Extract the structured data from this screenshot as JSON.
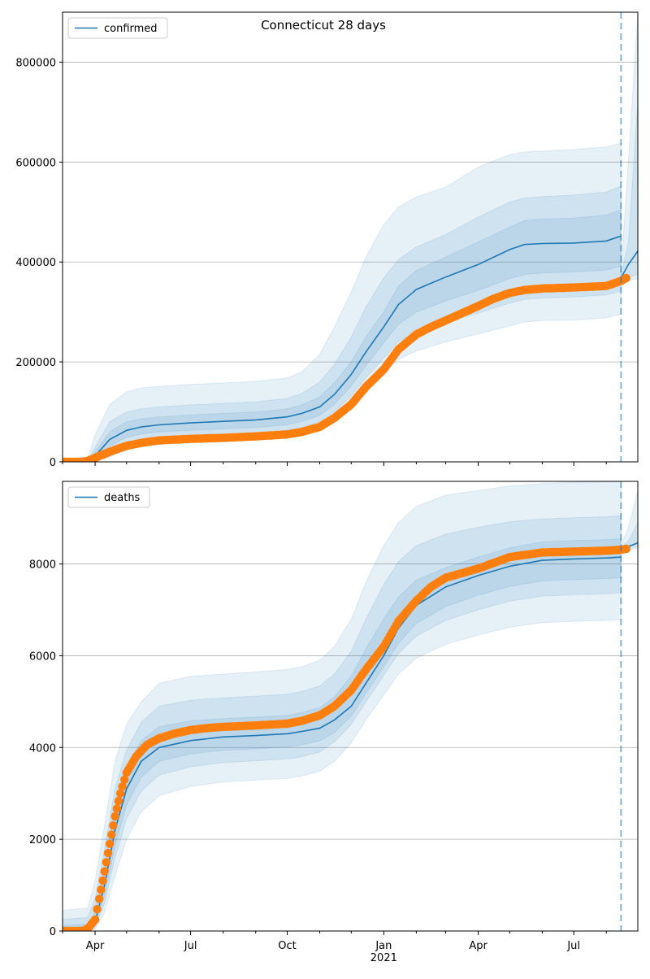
{
  "title": "Connecticut 28 days",
  "colors": {
    "model": "#1f77b4",
    "observed": "#ff7f0e",
    "band": "#1f77b4",
    "grid": "#b0b0b0",
    "divider": "#1f77b4"
  },
  "chart_data": [
    {
      "type": "line",
      "legend": "confirmed",
      "legend_position": "top-left",
      "grid": "y",
      "xlim": [
        "2020-03-01",
        "2021-08-31"
      ],
      "ylim": [
        0,
        900000
      ],
      "y_ticks": [
        0,
        200000,
        400000,
        600000,
        800000
      ],
      "y_tick_labels": [
        "0",
        "200000",
        "400000",
        "600000",
        "800000"
      ],
      "x_tick_labels": [],
      "forecast_start": "2021-08-15",
      "series": [
        {
          "name": "confirmed",
          "x": [
            "2020-03-01",
            "2020-03-25",
            "2020-04-01",
            "2020-04-15",
            "2020-05-01",
            "2020-05-15",
            "2020-06-01",
            "2020-07-01",
            "2020-08-01",
            "2020-09-01",
            "2020-10-01",
            "2020-10-15",
            "2020-11-01",
            "2020-11-15",
            "2020-12-01",
            "2020-12-15",
            "2021-01-01",
            "2021-01-15",
            "2021-02-01",
            "2021-03-01",
            "2021-04-01",
            "2021-05-01",
            "2021-05-15",
            "2021-06-01",
            "2021-07-01",
            "2021-08-01",
            "2021-08-15"
          ],
          "values": [
            0,
            0,
            12000,
            45000,
            63000,
            70000,
            74000,
            78000,
            81000,
            84000,
            90000,
            97000,
            110000,
            135000,
            175000,
            220000,
            270000,
            315000,
            345000,
            370000,
            395000,
            425000,
            435000,
            437000,
            438000,
            442000,
            452000
          ]
        },
        {
          "name": "forecast",
          "x": [
            "2021-08-15",
            "2021-08-22",
            "2021-08-31"
          ],
          "values": [
            368000,
            395000,
            422000
          ]
        }
      ],
      "bands": [
        {
          "x": [
            "2020-03-01",
            "2020-03-25",
            "2020-04-01",
            "2020-04-15",
            "2020-05-01",
            "2020-05-15",
            "2020-06-01",
            "2020-07-01",
            "2020-08-01",
            "2020-09-01",
            "2020-10-01",
            "2020-10-15",
            "2020-11-01",
            "2020-11-15",
            "2020-12-01",
            "2020-12-15",
            "2021-01-01",
            "2021-01-15",
            "2021-02-01",
            "2021-03-01",
            "2021-04-01",
            "2021-05-01",
            "2021-05-15",
            "2021-06-01",
            "2021-07-01",
            "2021-08-01",
            "2021-08-15"
          ],
          "lower": [
            0,
            0,
            0,
            10000,
            25000,
            33000,
            37000,
            40000,
            42000,
            44000,
            48000,
            53000,
            62000,
            80000,
            108000,
            140000,
            178000,
            205000,
            222000,
            240000,
            256000,
            272000,
            280000,
            283000,
            284000,
            288000,
            296000
          ],
          "upper": [
            0,
            5000,
            55000,
            115000,
            140000,
            148000,
            151000,
            155000,
            158000,
            161000,
            168000,
            180000,
            215000,
            270000,
            340000,
            410000,
            475000,
            510000,
            530000,
            550000,
            590000,
            615000,
            620000,
            622000,
            625000,
            630000,
            638000
          ]
        },
        {
          "x": [
            "2020-03-01",
            "2020-03-25",
            "2020-04-01",
            "2020-04-15",
            "2020-05-01",
            "2020-05-15",
            "2020-06-01",
            "2020-07-01",
            "2020-08-01",
            "2020-09-01",
            "2020-10-01",
            "2020-10-15",
            "2020-11-01",
            "2020-11-15",
            "2020-12-01",
            "2020-12-15",
            "2021-01-01",
            "2021-01-15",
            "2021-02-01",
            "2021-03-01",
            "2021-04-01",
            "2021-05-01",
            "2021-05-15",
            "2021-06-01",
            "2021-07-01",
            "2021-08-01",
            "2021-08-15"
          ],
          "lower": [
            0,
            0,
            2000,
            22000,
            38000,
            45000,
            49000,
            52000,
            55000,
            57000,
            62000,
            68000,
            80000,
            100000,
            132000,
            168000,
            208000,
            240000,
            260000,
            280000,
            298000,
            318000,
            325000,
            328000,
            330000,
            334000,
            342000
          ],
          "upper": [
            0,
            2000,
            30000,
            80000,
            100000,
            106000,
            110000,
            114000,
            117000,
            120000,
            127000,
            137000,
            160000,
            195000,
            250000,
            310000,
            368000,
            405000,
            430000,
            455000,
            490000,
            520000,
            528000,
            531000,
            534000,
            540000,
            552000
          ]
        },
        {
          "x": [
            "2020-03-01",
            "2020-03-25",
            "2020-04-01",
            "2020-04-15",
            "2020-05-01",
            "2020-05-15",
            "2020-06-01",
            "2020-07-01",
            "2020-08-01",
            "2020-09-01",
            "2020-10-01",
            "2020-10-15",
            "2020-11-01",
            "2020-11-15",
            "2020-12-01",
            "2020-12-15",
            "2021-01-01",
            "2021-01-15",
            "2021-02-01",
            "2021-03-01",
            "2021-04-01",
            "2021-05-01",
            "2021-05-15",
            "2021-06-01",
            "2021-07-01",
            "2021-08-01",
            "2021-08-15"
          ],
          "lower": [
            0,
            0,
            6000,
            32000,
            49000,
            56000,
            60000,
            63000,
            66000,
            69000,
            74000,
            81000,
            93000,
            115000,
            152000,
            193000,
            238000,
            275000,
            300000,
            322000,
            343000,
            367000,
            375000,
            378000,
            380000,
            384000,
            392000
          ],
          "upper": [
            0,
            1000,
            20000,
            60000,
            80000,
            86000,
            90000,
            94000,
            97000,
            100000,
            106000,
            114000,
            130000,
            158000,
            200000,
            250000,
            300000,
            352000,
            383000,
            410000,
            440000,
            470000,
            483000,
            486000,
            488000,
            494000,
            505000
          ]
        },
        {
          "x": [
            "2021-08-15",
            "2021-08-22",
            "2021-08-31"
          ],
          "lower": [
            360000,
            364000,
            366000
          ],
          "upper": [
            380000,
            600000,
            900000
          ]
        },
        {
          "x": [
            "2021-08-15",
            "2021-08-22",
            "2021-08-31"
          ],
          "lower": [
            364000,
            370000,
            375000
          ],
          "upper": [
            372000,
            440000,
            720000
          ]
        }
      ],
      "observed": {
        "x": [
          "2020-03-01",
          "2020-03-20",
          "2020-03-25",
          "2020-04-01",
          "2020-04-10",
          "2020-04-20",
          "2020-05-01",
          "2020-05-15",
          "2020-06-01",
          "2020-07-01",
          "2020-08-01",
          "2020-09-01",
          "2020-10-01",
          "2020-10-15",
          "2020-11-01",
          "2020-11-15",
          "2020-12-01",
          "2020-12-15",
          "2021-01-01",
          "2021-01-15",
          "2021-02-01",
          "2021-02-15",
          "2021-03-01",
          "2021-03-15",
          "2021-04-01",
          "2021-04-15",
          "2021-05-01",
          "2021-05-15",
          "2021-06-01",
          "2021-07-01",
          "2021-08-01",
          "2021-08-15",
          "2021-08-20"
        ],
        "values": [
          0,
          0,
          2000,
          8000,
          16000,
          24000,
          32000,
          38000,
          43000,
          46000,
          48000,
          51000,
          55000,
          60000,
          70000,
          88000,
          115000,
          150000,
          185000,
          225000,
          255000,
          270000,
          283000,
          296000,
          312000,
          326000,
          338000,
          344000,
          347000,
          349000,
          352000,
          362000,
          368000
        ]
      }
    },
    {
      "type": "line",
      "legend": "deaths",
      "legend_position": "top-left",
      "grid": "y",
      "xlim": [
        "2020-03-01",
        "2021-08-31"
      ],
      "ylim": [
        0,
        9800
      ],
      "y_ticks": [
        0,
        2000,
        4000,
        6000,
        8000
      ],
      "y_tick_labels": [
        "0",
        "2000",
        "4000",
        "6000",
        "8000"
      ],
      "x_tick_labels": [
        "Apr",
        "Jul",
        "Oct",
        "Jan",
        "Apr",
        "Jul"
      ],
      "x_tick_dates": [
        "2020-04-01",
        "2020-07-01",
        "2020-10-01",
        "2021-01-01",
        "2021-04-01",
        "2021-07-01"
      ],
      "x_year_label": "2021",
      "forecast_start": "2021-08-15",
      "series": [
        {
          "name": "deaths",
          "x": [
            "2020-03-01",
            "2020-03-25",
            "2020-04-01",
            "2020-04-10",
            "2020-04-20",
            "2020-05-01",
            "2020-05-15",
            "2020-06-01",
            "2020-07-01",
            "2020-08-01",
            "2020-09-01",
            "2020-10-01",
            "2020-10-15",
            "2020-11-01",
            "2020-11-15",
            "2020-12-01",
            "2020-12-15",
            "2021-01-01",
            "2021-01-15",
            "2021-02-01",
            "2021-03-01",
            "2021-04-01",
            "2021-05-01",
            "2021-06-01",
            "2021-07-01",
            "2021-08-01",
            "2021-08-15"
          ],
          "values": [
            0,
            0,
            200,
            1000,
            2200,
            3100,
            3700,
            4000,
            4150,
            4230,
            4260,
            4300,
            4350,
            4420,
            4600,
            4900,
            5400,
            6000,
            6600,
            7100,
            7500,
            7750,
            7950,
            8080,
            8110,
            8130,
            8150
          ]
        },
        {
          "name": "forecast",
          "x": [
            "2021-08-15",
            "2021-08-22",
            "2021-08-31"
          ],
          "values": [
            8320,
            8380,
            8460
          ]
        }
      ],
      "bands": [
        {
          "x": [
            "2020-03-01",
            "2020-03-25",
            "2020-04-01",
            "2020-04-10",
            "2020-04-20",
            "2020-05-01",
            "2020-05-15",
            "2020-06-01",
            "2020-07-01",
            "2020-08-01",
            "2020-09-01",
            "2020-10-01",
            "2020-10-15",
            "2020-11-01",
            "2020-11-15",
            "2020-12-01",
            "2020-12-15",
            "2021-01-01",
            "2021-01-15",
            "2021-02-01",
            "2021-03-01",
            "2021-04-01",
            "2021-05-01",
            "2021-06-01",
            "2021-07-01",
            "2021-08-01",
            "2021-08-15"
          ],
          "lower": [
            0,
            0,
            50,
            400,
            1200,
            2000,
            2600,
            2950,
            3150,
            3250,
            3290,
            3330,
            3380,
            3480,
            3700,
            4100,
            4600,
            5150,
            5600,
            5950,
            6250,
            6450,
            6620,
            6720,
            6750,
            6770,
            6790
          ],
          "upper": [
            450,
            500,
            1100,
            2300,
            3700,
            4500,
            5000,
            5400,
            5550,
            5600,
            5650,
            5700,
            5760,
            5900,
            6200,
            6800,
            7600,
            8400,
            8900,
            9250,
            9500,
            9600,
            9700,
            9750,
            9780,
            9790,
            9800
          ]
        },
        {
          "x": [
            "2020-03-01",
            "2020-03-25",
            "2020-04-01",
            "2020-04-10",
            "2020-04-20",
            "2020-05-01",
            "2020-05-15",
            "2020-06-01",
            "2020-07-01",
            "2020-08-01",
            "2020-09-01",
            "2020-10-01",
            "2020-10-15",
            "2020-11-01",
            "2020-11-15",
            "2020-12-01",
            "2020-12-15",
            "2021-01-01",
            "2021-01-15",
            "2021-02-01",
            "2021-03-01",
            "2021-04-01",
            "2021-05-01",
            "2021-06-01",
            "2021-07-01",
            "2021-08-01",
            "2021-08-15"
          ],
          "lower": [
            0,
            0,
            100,
            600,
            1600,
            2450,
            3050,
            3400,
            3580,
            3670,
            3710,
            3750,
            3800,
            3900,
            4120,
            4500,
            5000,
            5570,
            6050,
            6430,
            6770,
            7000,
            7190,
            7300,
            7330,
            7350,
            7370
          ],
          "upper": [
            250,
            300,
            700,
            1800,
            3100,
            3950,
            4550,
            4900,
            5030,
            5080,
            5120,
            5160,
            5220,
            5340,
            5600,
            6100,
            6800,
            7550,
            8050,
            8400,
            8650,
            8800,
            8920,
            8980,
            9010,
            9030,
            9050
          ]
        },
        {
          "x": [
            "2020-03-01",
            "2020-03-25",
            "2020-04-01",
            "2020-04-10",
            "2020-04-20",
            "2020-05-01",
            "2020-05-15",
            "2020-06-01",
            "2020-07-01",
            "2020-08-01",
            "2020-09-01",
            "2020-10-01",
            "2020-10-15",
            "2020-11-01",
            "2020-11-15",
            "2020-12-01",
            "2020-12-15",
            "2021-01-01",
            "2021-01-15",
            "2021-02-01",
            "2021-03-01",
            "2021-04-01",
            "2021-05-01",
            "2021-06-01",
            "2021-07-01",
            "2021-08-01",
            "2021-08-15"
          ],
          "lower": [
            0,
            0,
            140,
            780,
            1850,
            2750,
            3350,
            3700,
            3860,
            3940,
            3970,
            4010,
            4060,
            4140,
            4330,
            4680,
            5180,
            5760,
            6270,
            6700,
            7070,
            7320,
            7510,
            7630,
            7660,
            7680,
            7700
          ],
          "upper": [
            120,
            150,
            400,
            1400,
            2700,
            3550,
            4150,
            4450,
            4580,
            4630,
            4660,
            4700,
            4760,
            4870,
            5100,
            5560,
            6150,
            6800,
            7280,
            7650,
            7920,
            8150,
            8350,
            8480,
            8510,
            8530,
            8550
          ]
        },
        {
          "x": [
            "2021-08-15",
            "2021-08-22",
            "2021-08-31"
          ],
          "lower": [
            8280,
            8310,
            8340
          ],
          "upper": [
            8400,
            8800,
            9600
          ]
        },
        {
          "x": [
            "2021-08-15",
            "2021-08-22",
            "2021-08-31"
          ],
          "lower": [
            8300,
            8340,
            8390
          ],
          "upper": [
            8360,
            8500,
            8900
          ]
        }
      ],
      "observed": {
        "x": [
          "2020-03-01",
          "2020-03-20",
          "2020-03-25",
          "2020-04-01",
          "2020-04-05",
          "2020-04-10",
          "2020-04-15",
          "2020-04-20",
          "2020-04-25",
          "2020-05-01",
          "2020-05-10",
          "2020-05-20",
          "2020-06-01",
          "2020-06-15",
          "2020-07-01",
          "2020-07-15",
          "2020-08-01",
          "2020-09-01",
          "2020-10-01",
          "2020-10-15",
          "2020-11-01",
          "2020-11-15",
          "2020-12-01",
          "2020-12-15",
          "2021-01-01",
          "2021-01-15",
          "2021-02-01",
          "2021-02-15",
          "2021-03-01",
          "2021-04-01",
          "2021-05-01",
          "2021-06-01",
          "2021-07-01",
          "2021-08-01",
          "2021-08-15",
          "2021-08-20"
        ],
        "values": [
          0,
          0,
          50,
          250,
          700,
          1300,
          1900,
          2500,
          3000,
          3450,
          3800,
          4050,
          4200,
          4300,
          4380,
          4420,
          4450,
          4480,
          4520,
          4580,
          4700,
          4900,
          5250,
          5700,
          6200,
          6750,
          7200,
          7500,
          7700,
          7900,
          8150,
          8250,
          8270,
          8290,
          8310,
          8330
        ]
      }
    }
  ]
}
